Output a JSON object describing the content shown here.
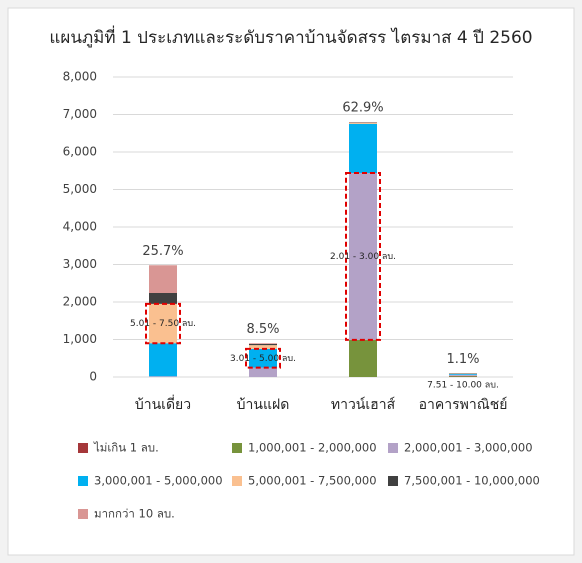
{
  "chart_data": {
    "type": "bar",
    "stacked": true,
    "title": "แผนภูมิที่ 1 ประเภทและระดับราคาบ้านจัดสรร ไตรมาส 4 ปี 2560",
    "categories": [
      "บ้านเดี่ยว",
      "บ้านแฝด",
      "ทาวน์เฮาส์",
      "อาคารพาณิชย์"
    ],
    "series": [
      {
        "name": "ไม่เกิน 1 ลบ.",
        "color": "#a5373a",
        "values": [
          0,
          0,
          0,
          10
        ]
      },
      {
        "name": "1,000,001 - 2,000,000",
        "color": "#77933c",
        "values": [
          0,
          0,
          990,
          20
        ]
      },
      {
        "name": "2,000,001 - 3,000,000",
        "color": "#b3a2c7",
        "values": [
          20,
          250,
          4450,
          30
        ]
      },
      {
        "name": "3,000,001 - 5,000,000",
        "color": "#00b0f0",
        "values": [
          880,
          500,
          1310,
          20
        ]
      },
      {
        "name": "5,000,001 - 7,500,000",
        "color": "#fac090",
        "values": [
          1050,
          100,
          30,
          10
        ]
      },
      {
        "name": "7,500,001 - 10,000,000",
        "color": "#404040",
        "values": [
          290,
          30,
          10,
          10
        ]
      },
      {
        "name": "มากกว่า 10 ลบ.",
        "color": "#d99694",
        "values": [
          740,
          20,
          10,
          0
        ]
      }
    ],
    "share_labels": [
      "25.7%",
      "8.5%",
      "62.9%",
      "1.1%"
    ],
    "highlights": [
      {
        "category": "บ้านเดี่ยว",
        "series": "5,000,001 - 7,500,000",
        "label": "5.01 - 7.50 ลบ."
      },
      {
        "category": "บ้านแฝด",
        "series": "3,000,001 - 5,000,000",
        "label": "3.01 - 5.00 ลบ."
      },
      {
        "category": "ทาวน์เฮาส์",
        "series": "2,000,001 - 3,000,000",
        "label": "2.01 - 3.00 ลบ."
      },
      {
        "category": "อาคารพาณิชย์",
        "series": "7,500,001 - 10,000,000",
        "label": "7.51 - 10.00 ลบ."
      }
    ],
    "ylim": [
      0,
      8000
    ],
    "yticks": [
      0,
      {
        "value": 1000,
        "label": "1,000"
      },
      {
        "value": 2000,
        "label": "2,000"
      },
      {
        "value": 3000,
        "label": "3,000"
      },
      {
        "value": 4000,
        "label": "4,000"
      },
      {
        "value": 5000,
        "label": "5,000"
      },
      {
        "value": 6000,
        "label": "6,000"
      },
      {
        "value": 7000,
        "label": "7,000"
      },
      {
        "value": 8000,
        "label": "8,000"
      }
    ],
    "grid": true,
    "legend": "bottom"
  }
}
